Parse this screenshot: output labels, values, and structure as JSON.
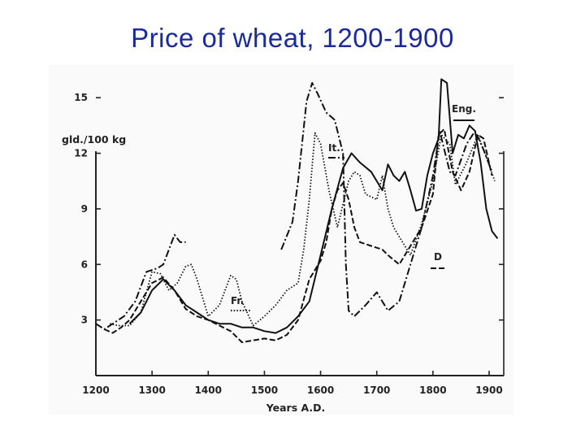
{
  "page": {
    "title": "Price of wheat, 1200-1900"
  },
  "chart_data": {
    "type": "line",
    "title": "Price of wheat, 1200-1900",
    "xlabel": "Years A.D.",
    "ylabel": "gld./100 kg",
    "xlim": [
      1200,
      1920
    ],
    "ylim": [
      0,
      16.5
    ],
    "xticks": [
      1200,
      1300,
      1400,
      1500,
      1600,
      1700,
      1800,
      1900
    ],
    "yticks": [
      3,
      6,
      9,
      12,
      15
    ],
    "grid": false,
    "series": [
      {
        "name": "Eng.",
        "style": "solid",
        "points": [
          [
            1260,
            2.8
          ],
          [
            1280,
            3.4
          ],
          [
            1300,
            4.6
          ],
          [
            1320,
            5.2
          ],
          [
            1340,
            4.6
          ],
          [
            1360,
            3.8
          ],
          [
            1380,
            3.4
          ],
          [
            1400,
            3.0
          ],
          [
            1420,
            2.8
          ],
          [
            1440,
            2.8
          ],
          [
            1460,
            2.6
          ],
          [
            1480,
            2.6
          ],
          [
            1500,
            2.4
          ],
          [
            1520,
            2.3
          ],
          [
            1540,
            2.6
          ],
          [
            1560,
            3.2
          ],
          [
            1580,
            4.0
          ],
          [
            1600,
            6.5
          ],
          [
            1620,
            9.0
          ],
          [
            1640,
            11.2
          ],
          [
            1655,
            12.0
          ],
          [
            1670,
            11.5
          ],
          [
            1690,
            11.0
          ],
          [
            1710,
            10.0
          ],
          [
            1720,
            11.4
          ],
          [
            1730,
            10.8
          ],
          [
            1740,
            10.5
          ],
          [
            1750,
            11.0
          ],
          [
            1760,
            10.0
          ],
          [
            1770,
            8.9
          ],
          [
            1780,
            9.0
          ],
          [
            1790,
            10.8
          ],
          [
            1800,
            12.0
          ],
          [
            1810,
            12.8
          ],
          [
            1815,
            16.0
          ],
          [
            1825,
            15.8
          ],
          [
            1835,
            12.0
          ],
          [
            1845,
            13.0
          ],
          [
            1855,
            12.8
          ],
          [
            1865,
            13.5
          ],
          [
            1875,
            13.2
          ],
          [
            1885,
            11.5
          ],
          [
            1895,
            9.0
          ],
          [
            1905,
            7.8
          ],
          [
            1915,
            7.4
          ]
        ]
      },
      {
        "name": "It.",
        "style": "dash-dot",
        "points": [
          [
            1200,
            2.8
          ],
          [
            1215,
            2.5
          ],
          [
            1230,
            2.8
          ],
          [
            1250,
            3.2
          ],
          [
            1270,
            4.0
          ],
          [
            1290,
            5.6
          ],
          [
            1310,
            5.8
          ],
          [
            1320,
            6.0
          ],
          [
            1330,
            6.8
          ],
          [
            1340,
            7.6
          ],
          [
            1350,
            7.2
          ],
          [
            1360,
            7.2
          ],
          [
            1530,
            6.8
          ],
          [
            1550,
            8.3
          ],
          [
            1560,
            10.5
          ],
          [
            1575,
            14.8
          ],
          [
            1585,
            15.8
          ],
          [
            1595,
            15.2
          ],
          [
            1610,
            14.2
          ],
          [
            1625,
            13.8
          ],
          [
            1640,
            12.0
          ],
          [
            1645,
            6.0
          ],
          [
            1650,
            3.5
          ],
          [
            1660,
            3.2
          ],
          [
            1680,
            3.8
          ],
          [
            1700,
            4.5
          ],
          [
            1720,
            3.5
          ],
          [
            1740,
            4.0
          ],
          [
            1760,
            6.0
          ],
          [
            1780,
            8.0
          ],
          [
            1800,
            10.8
          ],
          [
            1812,
            13.2
          ],
          [
            1830,
            11.0
          ],
          [
            1840,
            10.8
          ],
          [
            1860,
            12.5
          ],
          [
            1875,
            13.2
          ],
          [
            1890,
            12.2
          ],
          [
            1905,
            11.0
          ]
        ]
      },
      {
        "name": "D",
        "style": "dashed",
        "points": [
          [
            1215,
            2.5
          ],
          [
            1230,
            2.3
          ],
          [
            1245,
            2.6
          ],
          [
            1260,
            3.0
          ],
          [
            1280,
            4.0
          ],
          [
            1300,
            5.0
          ],
          [
            1320,
            5.3
          ],
          [
            1340,
            4.6
          ],
          [
            1360,
            3.6
          ],
          [
            1380,
            3.2
          ],
          [
            1400,
            3.0
          ],
          [
            1420,
            2.7
          ],
          [
            1440,
            2.4
          ],
          [
            1460,
            1.8
          ],
          [
            1480,
            1.9
          ],
          [
            1500,
            2.0
          ],
          [
            1520,
            1.9
          ],
          [
            1540,
            2.2
          ],
          [
            1560,
            3.0
          ],
          [
            1580,
            5.2
          ],
          [
            1600,
            6.2
          ],
          [
            1610,
            7.2
          ],
          [
            1620,
            9.0
          ],
          [
            1630,
            10.0
          ],
          [
            1640,
            10.4
          ],
          [
            1650,
            9.5
          ],
          [
            1660,
            8.0
          ],
          [
            1670,
            7.2
          ],
          [
            1690,
            7.0
          ],
          [
            1710,
            6.8
          ],
          [
            1720,
            6.5
          ],
          [
            1740,
            6.0
          ],
          [
            1760,
            7.0
          ],
          [
            1780,
            8.0
          ],
          [
            1800,
            9.8
          ],
          [
            1810,
            13.0
          ],
          [
            1820,
            13.3
          ],
          [
            1835,
            11.0
          ],
          [
            1850,
            10.0
          ],
          [
            1865,
            11.0
          ],
          [
            1880,
            13.0
          ],
          [
            1890,
            12.8
          ],
          [
            1905,
            10.8
          ]
        ]
      },
      {
        "name": "Fr.",
        "style": "dotted",
        "points": [
          [
            1225,
            2.8
          ],
          [
            1240,
            2.7
          ],
          [
            1260,
            2.7
          ],
          [
            1280,
            3.4
          ],
          [
            1300,
            5.6
          ],
          [
            1315,
            5.5
          ],
          [
            1330,
            4.6
          ],
          [
            1345,
            5.0
          ],
          [
            1360,
            5.9
          ],
          [
            1370,
            6.0
          ],
          [
            1380,
            5.2
          ],
          [
            1400,
            3.2
          ],
          [
            1420,
            3.8
          ],
          [
            1440,
            5.4
          ],
          [
            1450,
            5.2
          ],
          [
            1460,
            4.0
          ],
          [
            1480,
            2.7
          ],
          [
            1500,
            3.2
          ],
          [
            1520,
            3.8
          ],
          [
            1540,
            4.6
          ],
          [
            1560,
            5.0
          ],
          [
            1570,
            6.8
          ],
          [
            1580,
            9.5
          ],
          [
            1590,
            13.1
          ],
          [
            1600,
            12.5
          ],
          [
            1615,
            10.0
          ],
          [
            1630,
            8.0
          ],
          [
            1650,
            10.5
          ],
          [
            1660,
            11.0
          ],
          [
            1670,
            10.8
          ],
          [
            1680,
            9.8
          ],
          [
            1700,
            9.5
          ],
          [
            1710,
            10.8
          ],
          [
            1720,
            9.0
          ],
          [
            1730,
            8.0
          ],
          [
            1750,
            7.0
          ],
          [
            1760,
            6.5
          ],
          [
            1780,
            8.2
          ],
          [
            1800,
            10.5
          ],
          [
            1815,
            13.0
          ],
          [
            1830,
            12.5
          ],
          [
            1840,
            10.3
          ],
          [
            1860,
            11.5
          ],
          [
            1880,
            13.0
          ],
          [
            1895,
            11.8
          ],
          [
            1910,
            10.5
          ]
        ]
      }
    ],
    "labels": {
      "eng": "Eng.",
      "it": "It.",
      "fr": "Fr.",
      "d": "D"
    }
  }
}
